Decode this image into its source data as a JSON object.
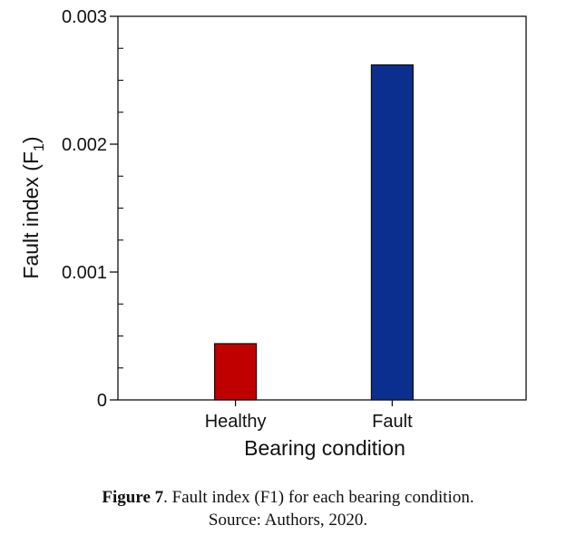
{
  "chart_data": {
    "type": "bar",
    "categories": [
      "Healthy",
      "Fault"
    ],
    "values": [
      0.00044,
      0.00262
    ],
    "colors": [
      "#c00000",
      "#0a2f8e"
    ],
    "xlabel": "Bearing condition",
    "ylabel": "Fault index (F",
    "ylabel_subscript": "1",
    "ylabel_suffix": ")",
    "ylim": [
      0,
      0.003
    ],
    "yticks": [
      0,
      0.001,
      0.002,
      0.003
    ],
    "ytick_labels": [
      "0",
      "0.001",
      "0.002",
      "0.003"
    ],
    "minor_ticks": true,
    "grid": false
  },
  "caption": {
    "figure_label": "Figure 7",
    "figure_text": ". Fault index (F1) for each bearing condition.",
    "source": "Source: Authors, 2020."
  }
}
